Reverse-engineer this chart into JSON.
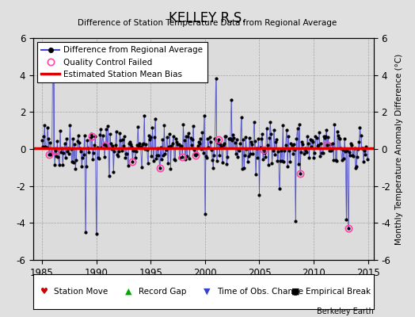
{
  "title": "KELLEY R.S.",
  "subtitle": "Difference of Station Temperature Data from Regional Average",
  "ylabel": "Monthly Temperature Anomaly Difference (°C)",
  "xlabel_ticks": [
    1985,
    1990,
    1995,
    2000,
    2005,
    2010,
    2015
  ],
  "ylim": [
    -6,
    6
  ],
  "xlim": [
    1984.2,
    2015.5
  ],
  "yticks": [
    -6,
    -4,
    -2,
    0,
    2,
    4,
    6
  ],
  "bias_line_y": 0.05,
  "background_color": "#e0e0e0",
  "plot_bg_color": "#dcdcdc",
  "line_color": "#4444cc",
  "bias_color": "#dd0000",
  "qc_color": "#ff44aa",
  "marker_color": "#000000",
  "attribution": "Berkeley Earth",
  "legend_items": [
    "Difference from Regional Average",
    "Quality Control Failed",
    "Estimated Station Mean Bias"
  ],
  "footer_symbols": [
    "♥",
    "▲",
    "▼",
    "■"
  ],
  "footer_colors": [
    "#cc0000",
    "#00aa00",
    "#3344cc",
    "#000000"
  ],
  "footer_labels": [
    "Station Move",
    "Record Gap",
    "Time of Obs. Change",
    "Empirical Break"
  ]
}
